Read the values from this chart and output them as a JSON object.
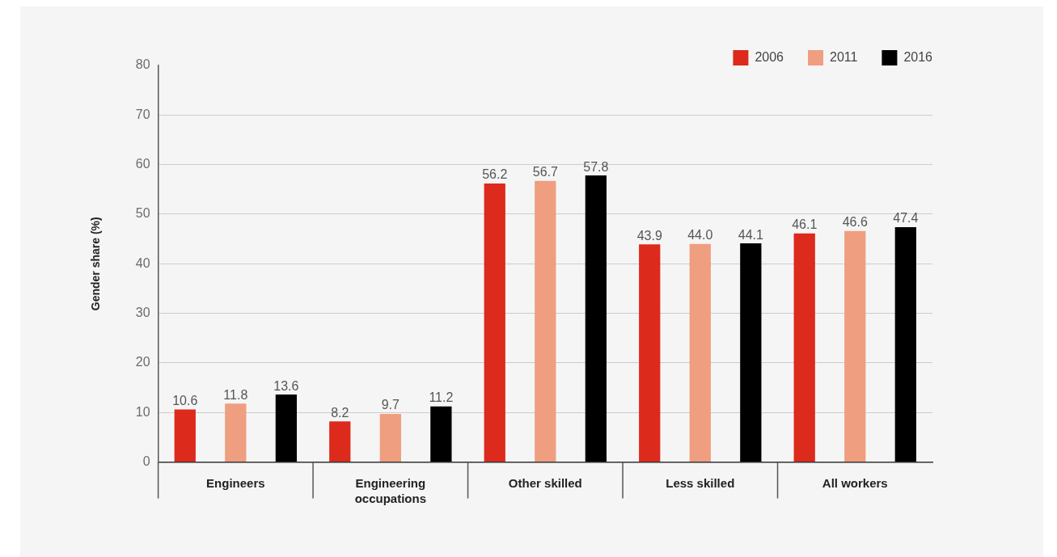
{
  "chart_data": {
    "type": "bar",
    "ylabel": "Gender share (%)",
    "categories": [
      "Engineers",
      "Engineering occupations",
      "Other skilled",
      "Less skilled",
      "All workers"
    ],
    "series": [
      {
        "name": "2006",
        "color": "#dc2a1c",
        "values": [
          10.6,
          8.2,
          56.2,
          43.9,
          46.1
        ],
        "value_labels": [
          "10.6",
          "8.2",
          "56.2",
          "43.9",
          "46.1"
        ]
      },
      {
        "name": "2011",
        "color": "#ef9e80",
        "values": [
          11.8,
          9.7,
          56.7,
          44.0,
          46.6
        ],
        "value_labels": [
          "11.8",
          "9.7",
          "56.7",
          "44.0",
          "46.6"
        ]
      },
      {
        "name": "2016",
        "color": "#000000",
        "values": [
          13.6,
          11.2,
          57.8,
          44.1,
          47.4
        ],
        "value_labels": [
          "13.6",
          "11.2",
          "57.8",
          "44.1",
          "47.4"
        ]
      }
    ],
    "ylim": [
      0,
      80
    ],
    "yticks": [
      0,
      10,
      20,
      30,
      40,
      50,
      60,
      70,
      80
    ],
    "grid": "y",
    "legend": "top right"
  }
}
